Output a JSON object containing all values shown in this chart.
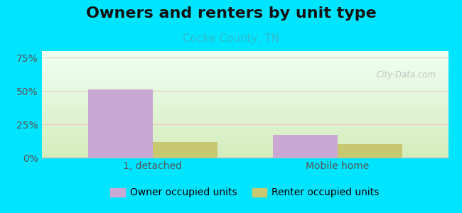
{
  "title": "Owners and renters by unit type",
  "subtitle": "Cocke County, TN",
  "categories": [
    "1, detached",
    "Mobile home"
  ],
  "owner_values": [
    51,
    17
  ],
  "renter_values": [
    12,
    10
  ],
  "owner_color": "#c9a8d4",
  "renter_color": "#c8c870",
  "background_outer": "#00e5ff",
  "yticks": [
    0,
    25,
    50,
    75
  ],
  "ylim": [
    0,
    80
  ],
  "bar_width": 0.35,
  "watermark": "City-Data.com",
  "title_fontsize": 16,
  "subtitle_fontsize": 11,
  "tick_fontsize": 10,
  "legend_fontsize": 10,
  "grad_top": "#f0fff4",
  "grad_bottom": "#d4edbc"
}
